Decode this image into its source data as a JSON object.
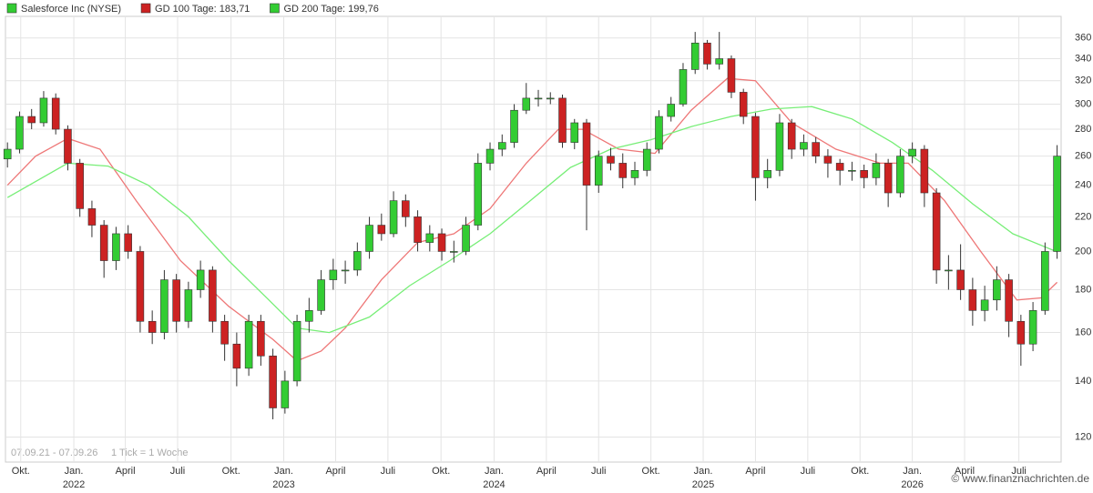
{
  "chart_data": {
    "type": "candlestick",
    "title": "Salesforce Inc (NYSE)",
    "color": "#33cc33",
    "color_up": "#33cc33",
    "color_down": "#cc2222",
    "log_scale": true,
    "grid": true,
    "legend": "top-left",
    "x": [
      0,
      3,
      6,
      9,
      12,
      15,
      18,
      21,
      24,
      27,
      30,
      33,
      36,
      39,
      42,
      45,
      48,
      51,
      54,
      57,
      60,
      63,
      66,
      69,
      72,
      75,
      78,
      81,
      84,
      87,
      90,
      93,
      96,
      99,
      102,
      105,
      108,
      111,
      114,
      117,
      120,
      123,
      126,
      129,
      132,
      135,
      138,
      141,
      144,
      147,
      150,
      153,
      156,
      159,
      162,
      165,
      168,
      171,
      174,
      177,
      180,
      183,
      186,
      189,
      192,
      195,
      198,
      201,
      204,
      207,
      210,
      213,
      216,
      219,
      222,
      225,
      228,
      231,
      234,
      237,
      240,
      243,
      246,
      249,
      252,
      255,
      258,
      261
    ],
    "open": [
      258,
      265,
      290,
      285,
      305,
      280,
      255,
      225,
      215,
      195,
      210,
      200,
      165,
      160,
      185,
      165,
      180,
      190,
      165,
      155,
      145,
      165,
      150,
      130,
      140,
      165,
      170,
      185,
      190,
      190,
      200,
      215,
      210,
      230,
      220,
      205,
      210,
      200,
      200,
      215,
      255,
      265,
      270,
      295,
      305,
      305,
      305,
      270,
      285,
      240,
      260,
      255,
      245,
      250,
      265,
      290,
      300,
      330,
      355,
      335,
      340,
      310,
      290,
      245,
      250,
      285,
      265,
      270,
      260,
      255,
      250,
      250,
      245,
      255,
      235,
      260,
      265,
      235,
      190,
      190,
      180,
      170,
      175,
      185,
      165,
      155,
      170,
      200
    ],
    "high": [
      270,
      294,
      296,
      311,
      309,
      283,
      258,
      230,
      218,
      214,
      215,
      203,
      170,
      190,
      188,
      184,
      195,
      192,
      168,
      160,
      168,
      168,
      153,
      144,
      168,
      176,
      190,
      196,
      195,
      205,
      220,
      222,
      236,
      234,
      224,
      215,
      213,
      206,
      220,
      262,
      270,
      276,
      300,
      318,
      312,
      310,
      308,
      288,
      288,
      264,
      266,
      262,
      256,
      270,
      295,
      306,
      336,
      366,
      358,
      366,
      343,
      313,
      293,
      258,
      292,
      288,
      276,
      274,
      265,
      258,
      256,
      254,
      262,
      258,
      265,
      270,
      268,
      238,
      198,
      204,
      186,
      182,
      192,
      188,
      168,
      174,
      205,
      268
    ],
    "low": [
      252,
      262,
      280,
      282,
      276,
      250,
      220,
      208,
      186,
      190,
      196,
      160,
      155,
      157,
      160,
      162,
      176,
      160,
      148,
      138,
      142,
      146,
      126,
      128,
      138,
      160,
      168,
      180,
      183,
      187,
      196,
      206,
      208,
      214,
      200,
      200,
      195,
      194,
      198,
      212,
      250,
      260,
      266,
      292,
      298,
      300,
      266,
      265,
      212,
      235,
      250,
      238,
      240,
      246,
      262,
      286,
      298,
      326,
      330,
      330,
      305,
      284,
      230,
      238,
      246,
      258,
      260,
      255,
      245,
      240,
      243,
      238,
      240,
      226,
      232,
      255,
      226,
      183,
      180,
      175,
      163,
      165,
      170,
      158,
      146,
      152,
      168,
      196
    ],
    "close": [
      265,
      290,
      285,
      305,
      280,
      255,
      225,
      215,
      195,
      210,
      200,
      165,
      160,
      185,
      165,
      180,
      190,
      165,
      155,
      145,
      165,
      150,
      130,
      140,
      165,
      170,
      185,
      190,
      190,
      200,
      215,
      210,
      230,
      220,
      205,
      210,
      200,
      200,
      215,
      255,
      265,
      270,
      295,
      305,
      305,
      305,
      270,
      285,
      240,
      260,
      255,
      245,
      250,
      265,
      290,
      300,
      330,
      355,
      335,
      340,
      310,
      290,
      245,
      250,
      285,
      265,
      270,
      260,
      255,
      250,
      250,
      245,
      255,
      235,
      260,
      265,
      235,
      190,
      190,
      180,
      170,
      175,
      185,
      165,
      155,
      170,
      200,
      260
    ],
    "series": [
      {
        "name": "GD 100 Tage: 183,71",
        "color": "#ee7777",
        "x": [
          0,
          7,
          15,
          23,
          32,
          43,
          55,
          66,
          72,
          78,
          84,
          93,
          102,
          111,
          120,
          129,
          137,
          143,
          152,
          161,
          170,
          179,
          186,
          195,
          206,
          217,
          224,
          233,
          242,
          251,
          257,
          261
        ],
        "values": [
          240,
          260,
          273,
          265,
          230,
          195,
          172,
          157,
          148,
          152,
          162,
          185,
          205,
          210,
          225,
          255,
          280,
          280,
          265,
          262,
          295,
          322,
          320,
          285,
          265,
          255,
          255,
          230,
          200,
          175,
          176,
          183.71
        ]
      },
      {
        "name": "GD 200 Tage: 199,76",
        "color": "#77ee77",
        "x": [
          0,
          15,
          25,
          35,
          45,
          55,
          65,
          72,
          80,
          90,
          100,
          110,
          120,
          130,
          140,
          150,
          160,
          170,
          180,
          190,
          200,
          210,
          220,
          230,
          240,
          250,
          261
        ],
        "values": [
          232,
          255,
          253,
          240,
          220,
          195,
          175,
          162,
          160,
          167,
          182,
          195,
          210,
          230,
          252,
          265,
          272,
          282,
          290,
          296,
          298,
          288,
          270,
          250,
          228,
          210,
          199.76
        ]
      }
    ],
    "xlim": [
      -0.5,
      262
    ],
    "ylim": [
      112,
      382
    ],
    "yticks": [
      120,
      140,
      160,
      180,
      200,
      220,
      240,
      260,
      280,
      300,
      320,
      340,
      360
    ],
    "xticks": [
      {
        "value": 3.3,
        "label": "Okt."
      },
      {
        "value": 16.5,
        "label": "Jan.",
        "year": "2022"
      },
      {
        "value": 29.3,
        "label": "April"
      },
      {
        "value": 42.3,
        "label": "Juli"
      },
      {
        "value": 55.6,
        "label": "Okt."
      },
      {
        "value": 68.7,
        "label": "Jan.",
        "year": "2023"
      },
      {
        "value": 81.6,
        "label": "April"
      },
      {
        "value": 94.6,
        "label": "Juli"
      },
      {
        "value": 107.8,
        "label": "Okt."
      },
      {
        "value": 121,
        "label": "Jan.",
        "year": "2024"
      },
      {
        "value": 134,
        "label": "April"
      },
      {
        "value": 147,
        "label": "Juli"
      },
      {
        "value": 160,
        "label": "Okt."
      },
      {
        "value": 173,
        "label": "Jan.",
        "year": "2025"
      },
      {
        "value": 186,
        "label": "April"
      },
      {
        "value": 199,
        "label": "Juli"
      },
      {
        "value": 212,
        "label": "Okt."
      },
      {
        "value": 225,
        "label": "Jan.",
        "year": "2026"
      },
      {
        "value": 238,
        "label": "April"
      },
      {
        "value": 251.5,
        "label": "Juli"
      }
    ],
    "period": "07.09.21 - 07.09.26",
    "tick_note": "1 Tick = 1 Woche",
    "source": "© www.finanznachrichten.de"
  }
}
